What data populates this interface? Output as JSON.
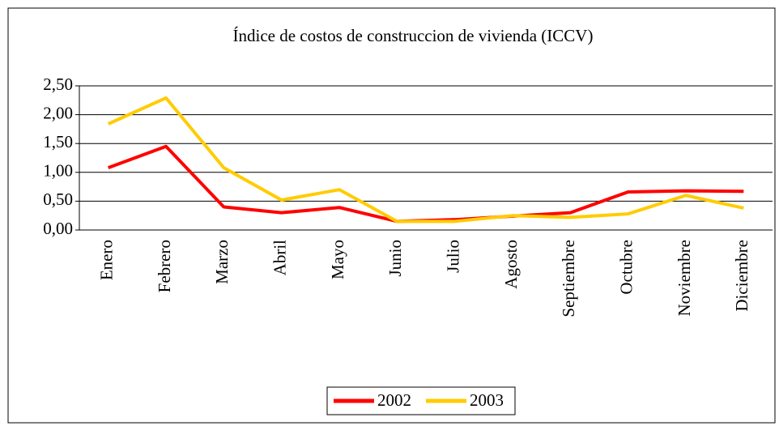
{
  "chart_data": {
    "type": "line",
    "title": "Índice de costos de construccion de vivienda (ICCV)",
    "categories": [
      "Enero",
      "Febrero",
      "Marzo",
      "Abril",
      "Mayo",
      "Junio",
      "Julio",
      "Agosto",
      "Septiembre",
      "Octubre",
      "Noviembre",
      "Diciembre"
    ],
    "series": [
      {
        "name": "2002",
        "color": "#ff0000",
        "values": [
          1.08,
          1.45,
          0.4,
          0.3,
          0.39,
          0.15,
          0.18,
          0.24,
          0.3,
          0.66,
          0.68,
          0.67
        ]
      },
      {
        "name": "2003",
        "color": "#ffcc00",
        "values": [
          1.84,
          2.29,
          1.08,
          0.52,
          0.7,
          0.15,
          0.15,
          0.25,
          0.22,
          0.28,
          0.6,
          0.38
        ]
      }
    ],
    "ylim": [
      0,
      2.5
    ],
    "yticks": [
      {
        "value": 0,
        "label": "0,00"
      },
      {
        "value": 0.5,
        "label": "0,50"
      },
      {
        "value": 1,
        "label": "1,00"
      },
      {
        "value": 1.5,
        "label": "1,50"
      },
      {
        "value": 2,
        "label": "2,00"
      },
      {
        "value": 2.5,
        "label": "2,50"
      }
    ],
    "grid": true,
    "legend": "bottom"
  }
}
